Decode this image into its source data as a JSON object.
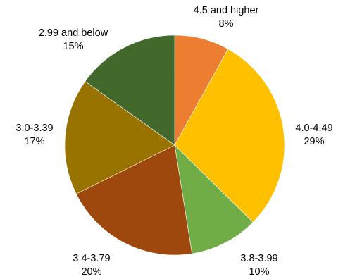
{
  "chart_data": {
    "type": "pie",
    "title": "",
    "start_angle_deg": 0,
    "direction": "clockwise",
    "slices": [
      {
        "label": "4.5 and higher",
        "percent_label": "8%",
        "value": 8,
        "color": "#ED7D31"
      },
      {
        "label": "4.0-4.49",
        "percent_label": "29%",
        "value": 29,
        "color": "#FFC000"
      },
      {
        "label": "3.8-3.99",
        "percent_label": "10%",
        "value": 10,
        "color": "#70AD47"
      },
      {
        "label": "3.4-3.79",
        "percent_label": "20%",
        "value": 20,
        "color": "#9E480E"
      },
      {
        "label": "3.0-3.39",
        "percent_label": "17%",
        "value": 17,
        "color": "#997300"
      },
      {
        "label": "2.99 and below",
        "percent_label": "15%",
        "value": 15,
        "color": "#43682B"
      }
    ]
  }
}
